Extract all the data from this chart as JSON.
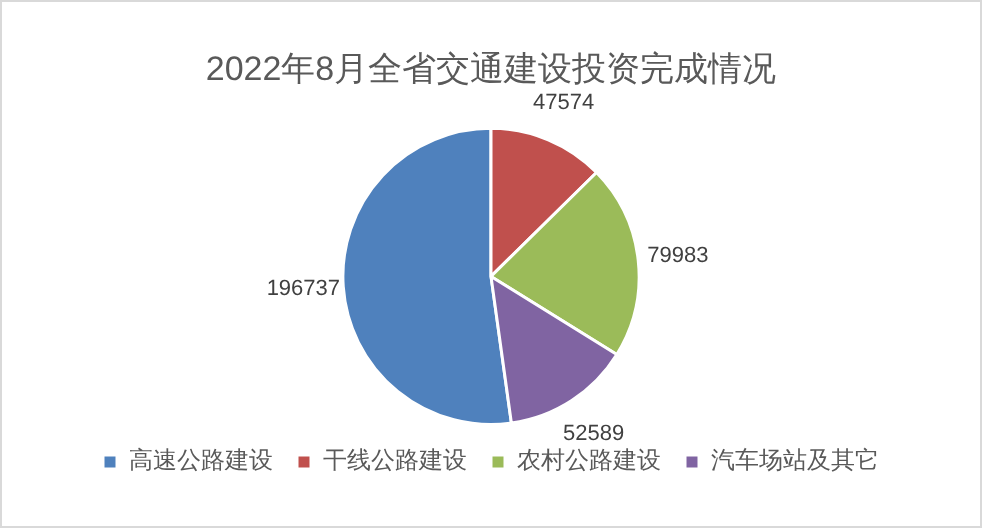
{
  "chart_data": {
    "type": "pie",
    "title": "2022年8月全省交通建设投资完成情况",
    "categories": [
      "高速公路建设",
      "干线公路建设",
      "农村公路建设",
      "汽车场站及其它"
    ],
    "values": [
      196737,
      47574,
      79983,
      52589
    ],
    "colors": [
      "#4f81bd",
      "#c0504d",
      "#9bbb59",
      "#8064a2"
    ],
    "data_labels": true,
    "legend": "bottom"
  }
}
